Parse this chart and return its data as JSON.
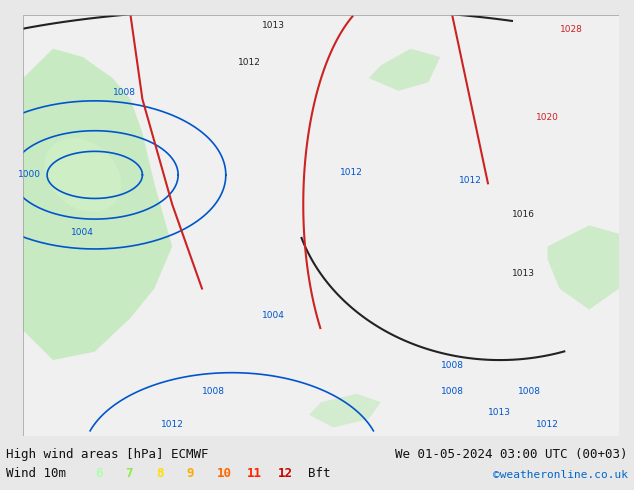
{
  "title_left": "High wind areas [hPa] ECMWF",
  "title_right": "We 01-05-2024 03:00 UTC (00+03)",
  "subtitle_left": "Wind 10m",
  "legend_values": [
    "6",
    "7",
    "8",
    "9",
    "10",
    "11",
    "12"
  ],
  "legend_colors": [
    "#aaffaa",
    "#88ee44",
    "#ffdd00",
    "#ffaa00",
    "#ff6600",
    "#ff2200",
    "#cc0000"
  ],
  "legend_unit": "Bft",
  "copyright": "©weatheronline.co.uk",
  "bg_color": "#e8e8e8",
  "map_bg_color": "#f0f0f0",
  "title_font_size": 9,
  "legend_font_size": 9,
  "copyright_color": "#0066cc"
}
